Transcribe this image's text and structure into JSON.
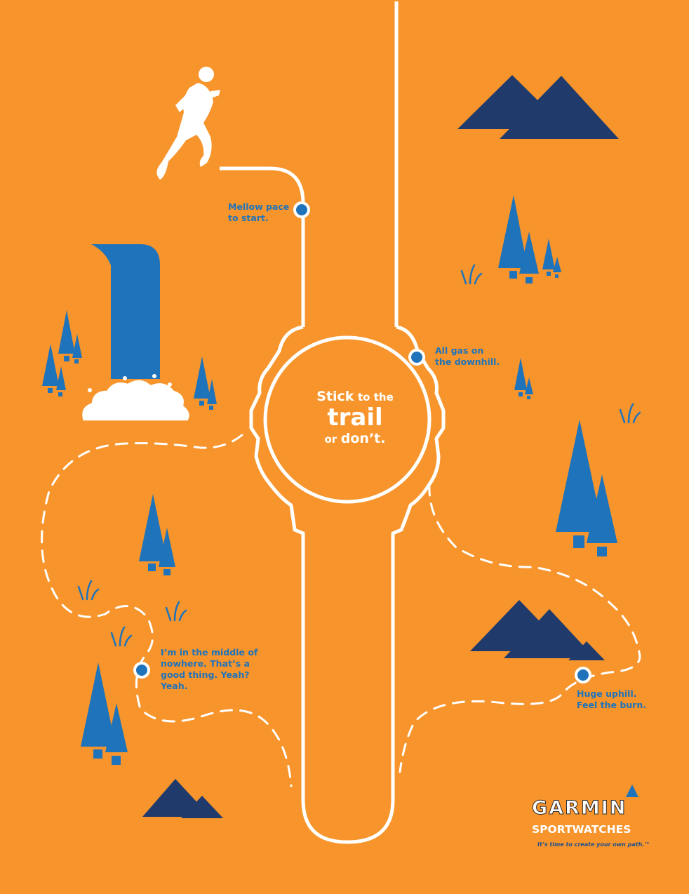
{
  "headline": {
    "part1": "Stick",
    "part2": "to the",
    "part3": "trail",
    "part4": "or",
    "part5": "don’t."
  },
  "callouts": {
    "mellow": "Mellow pace\nto start.",
    "downhill": "All gas on\nthe downhill.",
    "nowhere": "I’m in the middle of\nnowhere. That’s a\ngood thing. Yeah?\nYeah.",
    "uphill": "Huge uphill.\nFeel the burn."
  },
  "brand": {
    "name": "GARMIN",
    "product": "SPORTWATCHES",
    "tagline": "It’s time to create your own path.™"
  },
  "colors": {
    "background": "#f7952c",
    "tree": "#1f73ba",
    "mountain": "#1f3a6b",
    "path": "#ffffff",
    "text_blue": "#1f73ba"
  },
  "icons": [
    "runner-icon",
    "waterfall-icon",
    "tree-icon",
    "mountain-icon",
    "grass-icon",
    "waypoint-icon",
    "garmin-triangle-icon"
  ]
}
